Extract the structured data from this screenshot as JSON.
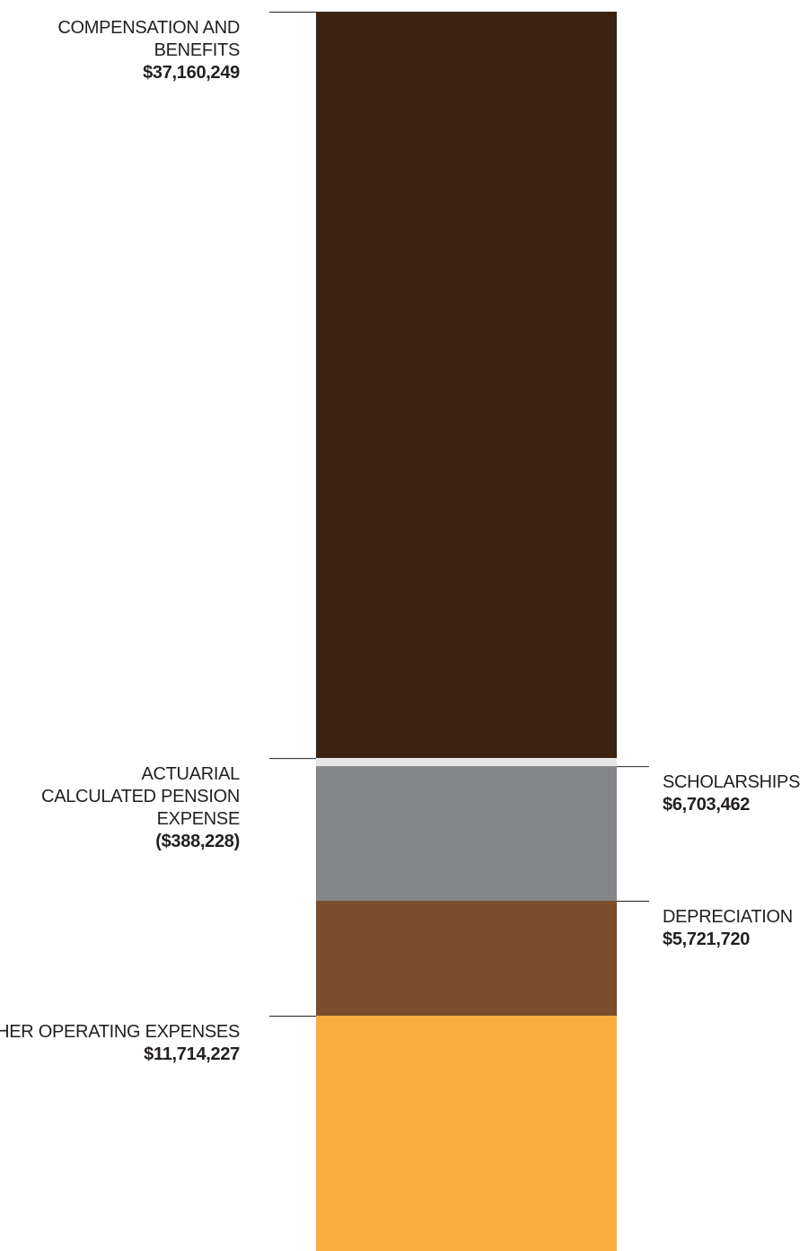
{
  "chart_data": {
    "type": "bar",
    "stacked": true,
    "orientation": "vertical",
    "segments": [
      {
        "key": "compensation",
        "name_lines": [
          "COMPENSATION AND",
          "BENEFITS"
        ],
        "value_label": "$37,160,249",
        "value": 37160249,
        "color": "#3d2314",
        "label_side": "left"
      },
      {
        "key": "pension",
        "name_lines": [
          "ACTUARIAL",
          "CALCULATED PENSION",
          "EXPENSE"
        ],
        "value_label": "($388,228)",
        "value": -388228,
        "color": "#e6e6e6",
        "label_side": "left"
      },
      {
        "key": "scholarships",
        "name_lines": [
          "SCHOLARSHIPS"
        ],
        "value_label": "$6,703,462",
        "value": 6703462,
        "color": "#848588",
        "label_side": "right"
      },
      {
        "key": "depreciation",
        "name_lines": [
          "DEPRECIATION"
        ],
        "value_label": "$5,721,720",
        "value": 5721720,
        "color": "#784f2a",
        "label_side": "right"
      },
      {
        "key": "other",
        "name_lines": [
          "OTHER OPERATING EXPENSES"
        ],
        "value_label": "$11,714,227",
        "value": 11714227,
        "color": "#f9ae3f",
        "label_side": "left"
      }
    ],
    "legend": "none",
    "grid": false
  }
}
